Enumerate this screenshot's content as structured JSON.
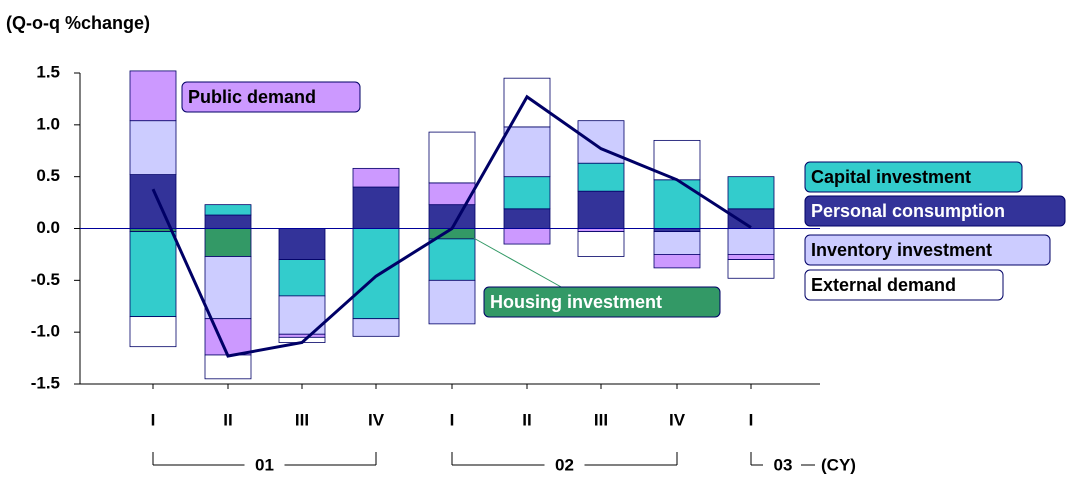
{
  "chart_data": {
    "type": "stacked_bar_line",
    "y_axis_label": "(Q-o-q %change)",
    "categories": [
      "I",
      "II",
      "III",
      "IV",
      "I",
      "II",
      "III",
      "IV",
      "I"
    ],
    "years": [
      "01",
      "02",
      "03"
    ],
    "year_unit": "(CY)",
    "ylim": [
      -1.5,
      1.5
    ],
    "yticks": [
      1.5,
      {
        "value": 1.0,
        "label": "1.0"
      },
      0.5,
      {
        "value": 0.0,
        "label": "0.0"
      },
      -0.5,
      {
        "value": -1.0,
        "label": "-1.0"
      },
      -1.5
    ],
    "series": [
      {
        "name": "Personal consumption",
        "color": "#333399",
        "values": [
          0.52,
          0.13,
          -0.3,
          0.4,
          0.23,
          0.19,
          0.36,
          -0.03,
          0.19
        ]
      },
      {
        "name": "Housing investment",
        "color": "#339966",
        "values": [
          -0.03,
          -0.27,
          0,
          0,
          -0.1,
          0,
          0,
          0,
          0
        ]
      },
      {
        "name": "Capital investment",
        "color": "#33cccc",
        "values": [
          -0.82,
          0.1,
          -0.35,
          -0.87,
          -0.4,
          0.31,
          0.27,
          0.47,
          0.31
        ]
      },
      {
        "name": "Inventory investment",
        "color": "#ccccff",
        "values": [
          0.52,
          -0.6,
          -0.37,
          -0.17,
          -0.42,
          0.48,
          0.41,
          -0.22,
          -0.25
        ]
      },
      {
        "name": "Public demand",
        "color": "#cc99ff",
        "values": [
          0.48,
          -0.35,
          -0.03,
          0.18,
          0.21,
          -0.15,
          -0.03,
          -0.13,
          -0.05
        ]
      },
      {
        "name": "External demand",
        "color": "#ffffff",
        "values": [
          -0.29,
          -0.23,
          -0.05,
          0,
          0.49,
          0.47,
          -0.24,
          0.38,
          -0.18
        ]
      }
    ],
    "line": {
      "color": "#000066",
      "values": [
        0.38,
        -1.23,
        -1.1,
        -0.46,
        0.0,
        1.27,
        0.77,
        0.47,
        0.01
      ]
    }
  }
}
